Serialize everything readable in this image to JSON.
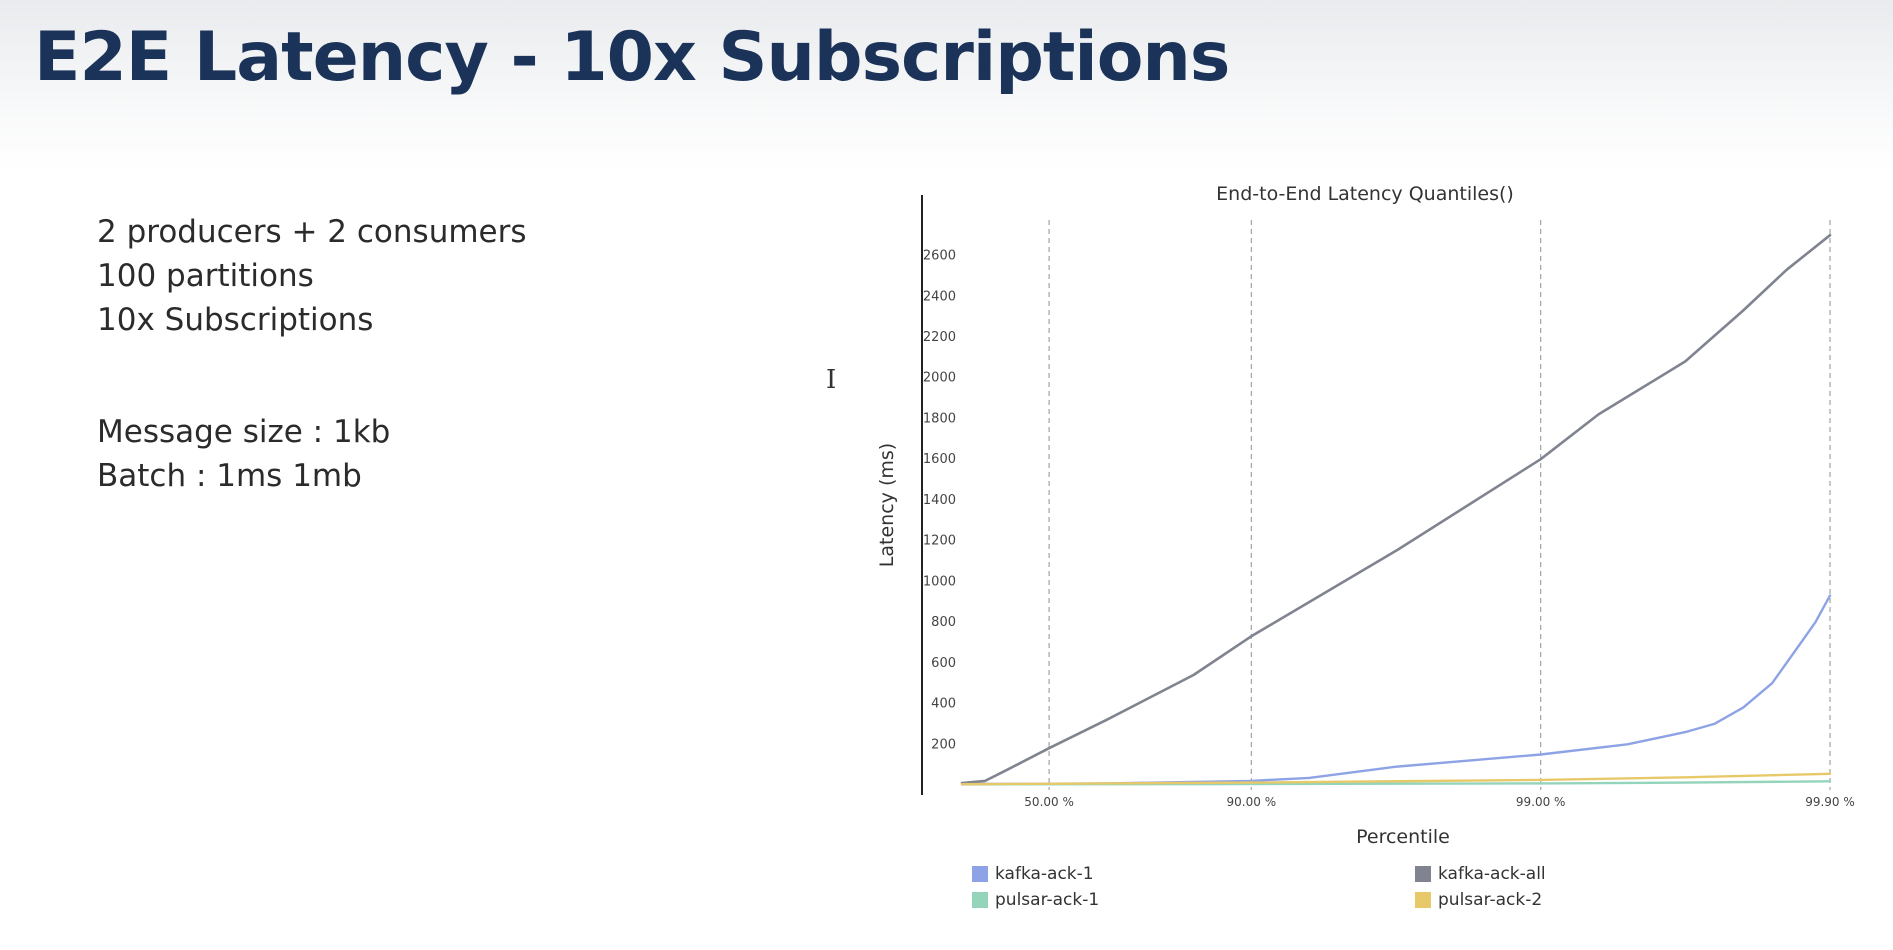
{
  "slide": {
    "title": "E2E Latency - 10x Subscriptions",
    "bullets_group1": [
      "2 producers + 2 consumers",
      "100 partitions",
      "10x Subscriptions"
    ],
    "bullets_group2": [
      "Message size : 1kb",
      "Batch : 1ms 1mb"
    ]
  },
  "chart_data": {
    "type": "line",
    "title": "End-to-End Latency Quantiles()",
    "xlabel": "Percentile",
    "ylabel": "Latency (ms)",
    "x_scale": "log-percentile (-log10(1 - p))",
    "x_ticks": [
      {
        "label": "50.00 %",
        "t": 0.301
      },
      {
        "label": "90.00 %",
        "t": 1.0
      },
      {
        "label": "99.00 %",
        "t": 2.0
      },
      {
        "label": "99.90 %",
        "t": 3.0
      }
    ],
    "xlim_t": [
      0.0,
      3.0
    ],
    "y_ticks": [
      200,
      400,
      600,
      800,
      1000,
      1200,
      1400,
      1600,
      1800,
      2000,
      2200,
      2400,
      2600
    ],
    "ylim": [
      0,
      2750
    ],
    "vertical_gridlines_dashed": true,
    "series": [
      {
        "name": "kafka-ack-1",
        "color": "#8ea3e6",
        "t": [
          0.0,
          0.5,
          1.0,
          1.2,
          1.5,
          2.0,
          2.3,
          2.5,
          2.6,
          2.7,
          2.8,
          2.9,
          2.95,
          3.0
        ],
        "values": [
          5,
          8,
          20,
          35,
          90,
          150,
          200,
          260,
          300,
          380,
          500,
          700,
          800,
          930
        ]
      },
      {
        "name": "kafka-ack-all",
        "color": "#808490",
        "t": [
          0.0,
          0.08,
          0.15,
          0.3,
          0.5,
          0.8,
          1.0,
          1.5,
          2.0,
          2.2,
          2.5,
          2.7,
          2.85,
          3.0
        ],
        "values": [
          10,
          20,
          70,
          180,
          320,
          540,
          730,
          1150,
          1600,
          1820,
          2080,
          2330,
          2530,
          2700
        ]
      },
      {
        "name": "pulsar-ack-1",
        "color": "#94d4bb",
        "t": [
          0.0,
          1.0,
          2.0,
          2.5,
          3.0
        ],
        "values": [
          3,
          5,
          8,
          12,
          18
        ]
      },
      {
        "name": "pulsar-ack-2",
        "color": "#e8c96a",
        "t": [
          0.0,
          1.0,
          2.0,
          2.5,
          3.0
        ],
        "values": [
          4,
          12,
          25,
          38,
          55
        ]
      }
    ],
    "legend": [
      {
        "name": "kafka-ack-1",
        "color": "#8ea3e6"
      },
      {
        "name": "kafka-ack-all",
        "color": "#808490"
      },
      {
        "name": "pulsar-ack-1",
        "color": "#94d4bb"
      },
      {
        "name": "pulsar-ack-2",
        "color": "#e8c96a"
      }
    ]
  }
}
